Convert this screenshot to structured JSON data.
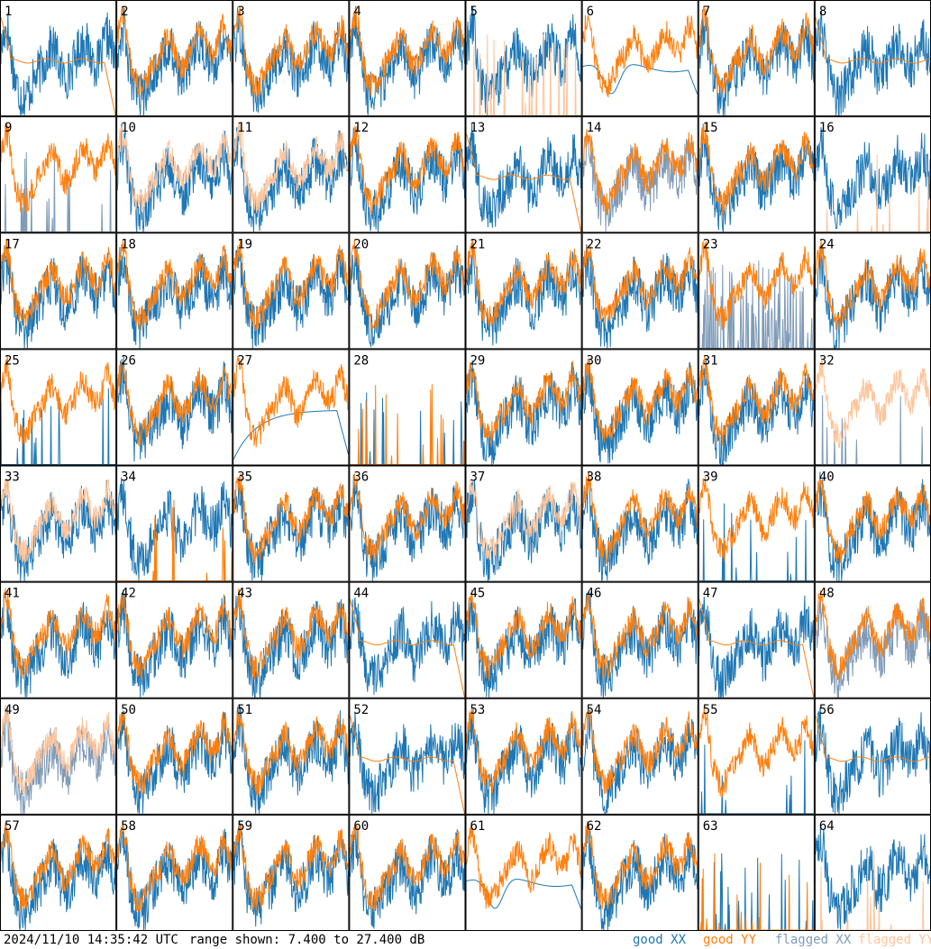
{
  "chart_data": {
    "type": "line",
    "description_units": "dB",
    "range_min_db": 7.4,
    "range_max_db": 27.4,
    "panels": [
      "1",
      "2",
      "3",
      "4",
      "5",
      "6",
      "7",
      "8",
      "9",
      "10",
      "11",
      "12",
      "13",
      "14",
      "15",
      "16",
      "17",
      "18",
      "19",
      "20",
      "21",
      "22",
      "23",
      "24",
      "25",
      "26",
      "27",
      "28",
      "29",
      "30",
      "31",
      "32",
      "33",
      "34",
      "35",
      "36",
      "37",
      "38",
      "39",
      "40",
      "41",
      "42",
      "43",
      "44",
      "45",
      "46",
      "47",
      "48",
      "49",
      "50",
      "51",
      "52",
      "53",
      "54",
      "55",
      "56",
      "57",
      "58",
      "59",
      "60",
      "61",
      "62",
      "63",
      "64"
    ],
    "grid": {
      "cols": 8,
      "rows": 8
    },
    "panel_styles": {
      "1": {
        "xx": "good",
        "yy": "good",
        "yy_shape": "flat_dropoff"
      },
      "5": {
        "xx": "good",
        "yy": "flagged",
        "yy_shape": "spikes"
      },
      "6": {
        "xx": "good",
        "yy": "good",
        "xx_shape": "smooth_dip"
      },
      "8": {
        "xx": "good",
        "yy": "good",
        "yy_shape": "flat"
      },
      "9": {
        "xx": "flagged",
        "yy": "good",
        "xx_shape": "spikes"
      },
      "10": {
        "xx": "good",
        "yy": "flagged"
      },
      "11": {
        "xx": "good",
        "yy": "flagged"
      },
      "13": {
        "xx": "good",
        "yy": "good",
        "yy_shape": "flat_dropoff"
      },
      "14": {
        "xx": "flagged",
        "yy": "good"
      },
      "16": {
        "xx": "good",
        "yy": "flagged",
        "yy_shape": "spikes"
      },
      "23": {
        "xx": "flagged",
        "yy": "good",
        "xx_shape": "spikes_dense"
      },
      "25": {
        "xx": "good",
        "yy": "good",
        "xx_shape": "spikes"
      },
      "27": {
        "xx": "good",
        "yy": "good",
        "xx_shape": "smooth_rise"
      },
      "28": {
        "xx": "good",
        "yy": "good",
        "xx_shape": "spikes",
        "yy_shape": "spikes"
      },
      "32": {
        "xx": "flagged",
        "yy": "flagged",
        "xx_shape": "spikes"
      },
      "33": {
        "xx": "good",
        "yy": "flagged"
      },
      "34": {
        "xx": "good",
        "yy": "good",
        "yy_shape": "spikes"
      },
      "37": {
        "xx": "good",
        "yy": "flagged"
      },
      "39": {
        "xx": "good",
        "yy": "good",
        "xx_shape": "spikes"
      },
      "44": {
        "xx": "good",
        "yy": "good",
        "yy_shape": "flat_dropoff"
      },
      "47": {
        "xx": "good",
        "yy": "good",
        "yy_shape": "flat_dropoff"
      },
      "48": {
        "xx": "flagged",
        "yy": "good"
      },
      "49": {
        "xx": "flagged",
        "yy": "flagged"
      },
      "52": {
        "xx": "good",
        "yy": "good",
        "yy_shape": "flat_dropoff"
      },
      "55": {
        "xx": "good",
        "yy": "good",
        "xx_shape": "spikes"
      },
      "56": {
        "xx": "good",
        "yy": "good",
        "yy_shape": "flat"
      },
      "61": {
        "xx": "good",
        "yy": "good",
        "xx_shape": "smooth_dip"
      },
      "63": {
        "xx": "good",
        "yy": "good",
        "xx_shape": "spikes",
        "yy_shape": "spikes"
      },
      "64": {
        "xx": "good",
        "yy": "flagged",
        "yy_shape": "spikes"
      }
    },
    "legend": {
      "good_xx": "good XX",
      "good_yy": "good YY",
      "flagged_xx": "flagged XX",
      "flagged_yy": "flagged YY"
    },
    "colors": {
      "good_xx": "#1f77b4",
      "good_yy": "#ff7f0e",
      "flagged_xx": "#7f9bb8",
      "flagged_yy": "#ffc49a"
    }
  },
  "footer": {
    "timestamp": "2024/11/10 14:35:42 UTC",
    "range_label": "range shown: 7.400 to 27.400 dB"
  }
}
